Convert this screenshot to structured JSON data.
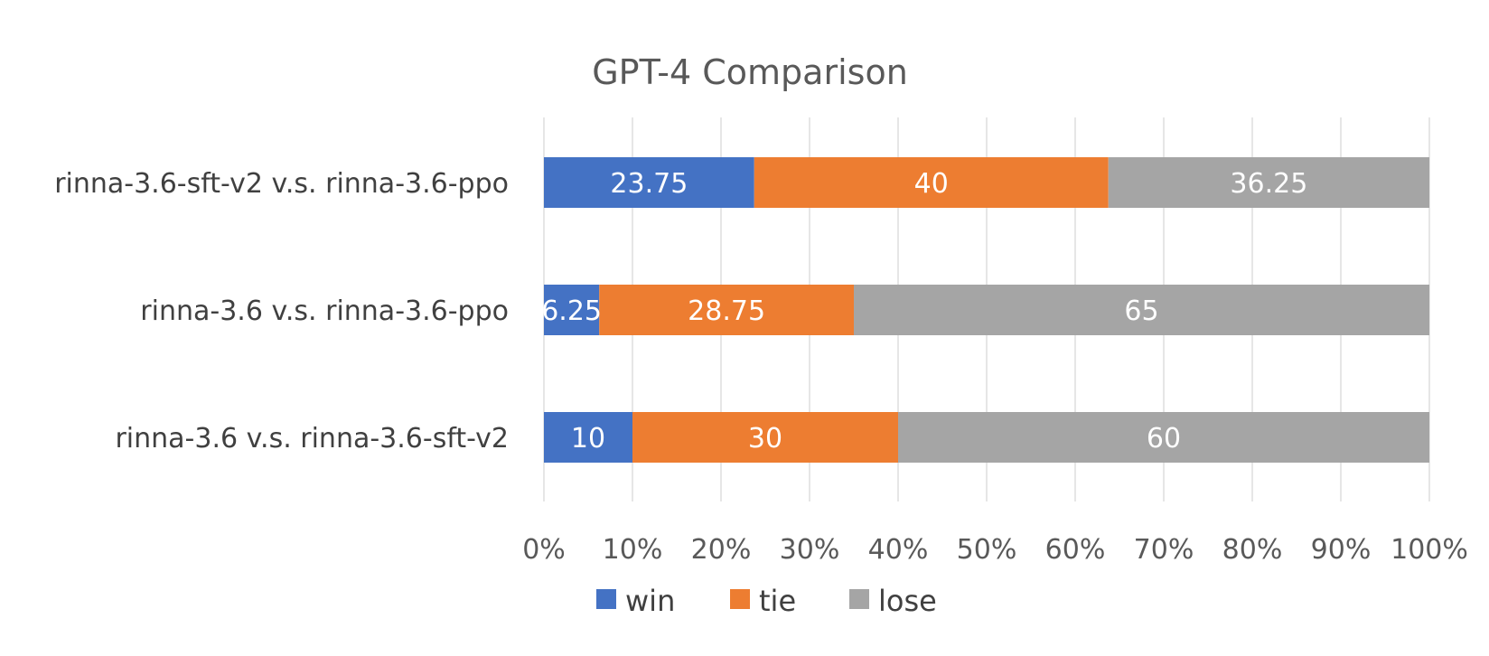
{
  "chart_data": {
    "type": "bar",
    "orientation": "horizontal",
    "stacked": "percent",
    "title": "GPT-4 Comparison",
    "categories": [
      "rinna-3.6-sft-v2 v.s. rinna-3.6-ppo",
      "rinna-3.6 v.s. rinna-3.6-ppo",
      "rinna-3.6 v.s. rinna-3.6-sft-v2"
    ],
    "series": [
      {
        "name": "win",
        "color": "#4472C4",
        "values": [
          23.75,
          6.25,
          10
        ]
      },
      {
        "name": "tie",
        "color": "#ED7D31",
        "values": [
          40,
          28.75,
          30
        ]
      },
      {
        "name": "lose",
        "color": "#A5A5A5",
        "values": [
          36.25,
          65,
          60
        ]
      }
    ],
    "xlim": [
      0,
      100
    ],
    "xticks": [
      "0%",
      "10%",
      "20%",
      "30%",
      "40%",
      "50%",
      "60%",
      "70%",
      "80%",
      "90%",
      "100%"
    ],
    "grid": "vertical",
    "legend": "bottom"
  }
}
